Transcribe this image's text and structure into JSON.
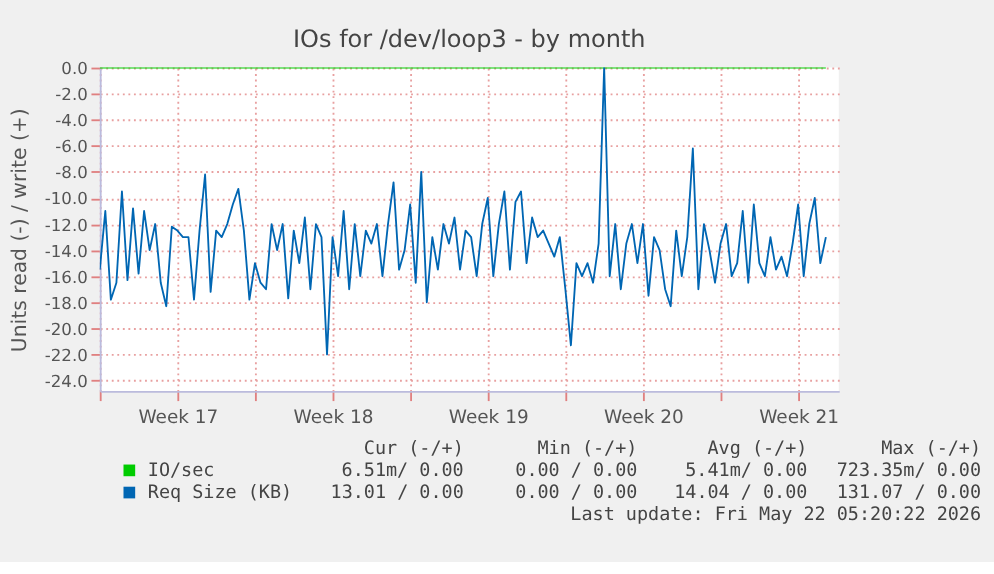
{
  "chart_data": {
    "type": "line",
    "title": "IOs for /dev/loop3 - by month",
    "ylabel": "Units read (-) / write (+)",
    "xlim": [
      "2026-04-20",
      "2026-05-23T08:00"
    ],
    "xticks": [
      {
        "value": "2026-04-20",
        "label": null
      },
      {
        "value": "2026-04-23T12:00",
        "label": "Week 17"
      },
      {
        "value": "2026-04-27",
        "label": null
      },
      {
        "value": "2026-04-30T12:00",
        "label": "Week 18"
      },
      {
        "value": "2026-05-04",
        "label": null
      },
      {
        "value": "2026-05-07T12:00",
        "label": "Week 19"
      },
      {
        "value": "2026-05-11",
        "label": null
      },
      {
        "value": "2026-05-14T12:00",
        "label": "Week 20"
      },
      {
        "value": "2026-05-18",
        "label": null
      },
      {
        "value": "2026-05-21T12:00",
        "label": "Week 21"
      }
    ],
    "ylim": [
      -24.8,
      0
    ],
    "yticks": [
      {
        "value": -24,
        "label": "-24.0"
      },
      {
        "value": -22,
        "label": "-22.0"
      },
      {
        "value": -20,
        "label": "-20.0"
      },
      {
        "value": -18,
        "label": "-18.0"
      },
      {
        "value": -16,
        "label": "-16.0"
      },
      {
        "value": -14,
        "label": "-14.0"
      },
      {
        "value": -12,
        "label": "-12.0"
      },
      {
        "value": -10,
        "label": "-10.0"
      },
      {
        "value": -8,
        "label": "-8.0"
      },
      {
        "value": -6,
        "label": "-6.0"
      },
      {
        "value": -4,
        "label": "-4.0"
      },
      {
        "value": -2,
        "label": "-2.0"
      },
      {
        "value": 0,
        "label": "0.0"
      }
    ],
    "grid": true,
    "legend": "bottom",
    "series": [
      {
        "name": "IO/sec",
        "color": "#00cc00",
        "x": [
          "2026-04-20",
          "2026-05-22T18:00"
        ],
        "values": [
          0,
          0
        ]
      },
      {
        "name": "Req Size (KB)",
        "color": "#0066b3",
        "x": [
          "2026-04-20T00:00",
          "2026-04-20T06:00",
          "2026-04-20T12:00",
          "2026-04-20T18:00",
          "2026-04-21T00:00",
          "2026-04-21T06:00",
          "2026-04-21T12:00",
          "2026-04-21T18:00",
          "2026-04-22T00:00",
          "2026-04-22T06:00",
          "2026-04-22T12:00",
          "2026-04-22T18:00",
          "2026-04-23T00:00",
          "2026-04-23T06:00",
          "2026-04-23T12:00",
          "2026-04-23T18:00",
          "2026-04-24T00:00",
          "2026-04-24T06:00",
          "2026-04-24T12:00",
          "2026-04-24T18:00",
          "2026-04-25T00:00",
          "2026-04-25T06:00",
          "2026-04-25T12:00",
          "2026-04-25T18:00",
          "2026-04-26T00:00",
          "2026-04-26T06:00",
          "2026-04-26T12:00",
          "2026-04-26T18:00",
          "2026-04-27T00:00",
          "2026-04-27T06:00",
          "2026-04-27T12:00",
          "2026-04-27T18:00",
          "2026-04-28T00:00",
          "2026-04-28T06:00",
          "2026-04-28T12:00",
          "2026-04-28T18:00",
          "2026-04-29T00:00",
          "2026-04-29T06:00",
          "2026-04-29T12:00",
          "2026-04-29T18:00",
          "2026-04-30T00:00",
          "2026-04-30T06:00",
          "2026-04-30T12:00",
          "2026-04-30T18:00",
          "2026-05-01T00:00",
          "2026-05-01T06:00",
          "2026-05-01T12:00",
          "2026-05-01T18:00",
          "2026-05-02T00:00",
          "2026-05-02T06:00",
          "2026-05-02T12:00",
          "2026-05-02T18:00",
          "2026-05-03T00:00",
          "2026-05-03T06:00",
          "2026-05-03T12:00",
          "2026-05-03T18:00",
          "2026-05-04T00:00",
          "2026-05-04T06:00",
          "2026-05-04T12:00",
          "2026-05-04T18:00",
          "2026-05-05T00:00",
          "2026-05-05T06:00",
          "2026-05-05T12:00",
          "2026-05-05T18:00",
          "2026-05-06T00:00",
          "2026-05-06T06:00",
          "2026-05-06T12:00",
          "2026-05-06T18:00",
          "2026-05-07T00:00",
          "2026-05-07T06:00",
          "2026-05-07T12:00",
          "2026-05-07T18:00",
          "2026-05-08T00:00",
          "2026-05-08T06:00",
          "2026-05-08T12:00",
          "2026-05-08T18:00",
          "2026-05-09T00:00",
          "2026-05-09T06:00",
          "2026-05-09T12:00",
          "2026-05-09T18:00",
          "2026-05-10T00:00",
          "2026-05-10T06:00",
          "2026-05-10T12:00",
          "2026-05-10T18:00",
          "2026-05-11T00:00",
          "2026-05-11T06:00",
          "2026-05-11T12:00",
          "2026-05-11T18:00",
          "2026-05-12T00:00",
          "2026-05-12T06:00",
          "2026-05-12T12:00",
          "2026-05-12T18:00",
          "2026-05-13T00:00",
          "2026-05-13T06:00",
          "2026-05-13T12:00",
          "2026-05-13T18:00",
          "2026-05-14T00:00",
          "2026-05-14T06:00",
          "2026-05-14T12:00",
          "2026-05-14T18:00",
          "2026-05-15T00:00",
          "2026-05-15T06:00",
          "2026-05-15T12:00",
          "2026-05-15T18:00",
          "2026-05-16T00:00",
          "2026-05-16T06:00",
          "2026-05-16T12:00",
          "2026-05-16T18:00",
          "2026-05-17T00:00",
          "2026-05-17T06:00",
          "2026-05-17T12:00",
          "2026-05-17T18:00",
          "2026-05-18T00:00",
          "2026-05-18T06:00",
          "2026-05-18T12:00",
          "2026-05-18T18:00",
          "2026-05-19T00:00",
          "2026-05-19T06:00",
          "2026-05-19T12:00",
          "2026-05-19T18:00",
          "2026-05-20T00:00",
          "2026-05-20T06:00",
          "2026-05-20T12:00",
          "2026-05-20T18:00",
          "2026-05-21T00:00",
          "2026-05-21T06:00",
          "2026-05-21T12:00",
          "2026-05-21T18:00",
          "2026-05-22T00:00",
          "2026-05-22T06:00",
          "2026-05-22T12:00",
          "2026-05-22T18:00"
        ],
        "values": [
          -15.5,
          -11,
          -17.8,
          -16.5,
          -9.5,
          -16.3,
          -10.8,
          -15.8,
          -11,
          -14,
          -12,
          -16.5,
          -18.3,
          -12.2,
          -12.5,
          -13,
          -13,
          -17.8,
          -12.5,
          -8.2,
          -17.2,
          -12.5,
          -13,
          -12,
          -10.5,
          -9.3,
          -12.5,
          -17.8,
          -15,
          -16.5,
          -17,
          -12,
          -14,
          -12,
          -17.7,
          -12.5,
          -15,
          -11.5,
          -17,
          -12,
          -13,
          -22,
          -13,
          -16,
          -11,
          -17,
          -12,
          -16,
          -12.5,
          -13.5,
          -12,
          -16,
          -12,
          -8.8,
          -15.5,
          -14,
          -10.5,
          -16.5,
          -8,
          -18,
          -13,
          -15.5,
          -12,
          -13.5,
          -11.5,
          -15.5,
          -12.5,
          -13,
          -16,
          -12,
          -10,
          -16,
          -12,
          -9.5,
          -15.5,
          -10.3,
          -9.5,
          -15,
          -11.5,
          -13,
          -12.5,
          -13.5,
          -14.5,
          -13,
          -17,
          -21.3,
          -15,
          -16,
          -15,
          -16.5,
          -13.5,
          0,
          -16,
          -12,
          -17,
          -13.5,
          -12,
          -15,
          -12,
          -17.5,
          -13,
          -14,
          -17,
          -18.3,
          -12.5,
          -16,
          -13,
          -6.2,
          -17,
          -12,
          -14,
          -16.5,
          -13.5,
          -12,
          -16,
          -15,
          -11,
          -16.5,
          -10.5,
          -15,
          -16,
          -13,
          -15.5,
          -14.5,
          -16,
          -13.5,
          -10.5,
          -16,
          -12,
          -10,
          -15,
          -13
        ]
      }
    ],
    "annotations": [
      "Cur (-/+)",
      "Min (-/+)",
      "Avg (-/+)",
      "Max (-/+)",
      "6.51m/ 0.00",
      "0.00 / 0.00",
      "5.41m/ 0.00",
      "723.35m/ 0.00",
      "13.01 / 0.00",
      "0.00 / 0.00",
      "14.04 / 0.00",
      "131.07 / 0.00",
      "Last update: Fri May 22 05:20:22 2026"
    ]
  }
}
